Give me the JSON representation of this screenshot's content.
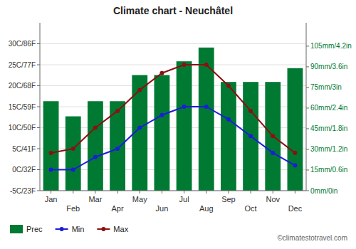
{
  "chart_data": {
    "type": "bar",
    "title": "Climate chart - Neuchâtel",
    "categories": [
      "Jan",
      "Feb",
      "Mar",
      "Apr",
      "May",
      "Jun",
      "Jul",
      "Aug",
      "Sep",
      "Oct",
      "Nov",
      "Dec"
    ],
    "series": [
      {
        "name": "Prec",
        "type": "bar",
        "axis": "y2",
        "color": "#007A33",
        "values": [
          65,
          54,
          65,
          65,
          84,
          84,
          94,
          104,
          79,
          79,
          79,
          89
        ]
      },
      {
        "name": "Min",
        "type": "line",
        "color": "#1C1CDB",
        "marker": "circle",
        "values": [
          0,
          0,
          3,
          5,
          10,
          13,
          15,
          15,
          12,
          8,
          4,
          1
        ]
      },
      {
        "name": "Max",
        "type": "line",
        "color": "#8B1010",
        "marker": "circle",
        "values": [
          4,
          5,
          10,
          14,
          19,
          23,
          25,
          25,
          20,
          14,
          8,
          4
        ]
      }
    ],
    "ylim": [
      -5,
      35
    ],
    "yticks": [
      {
        "value": -5,
        "label": "-5C/23F"
      },
      {
        "value": 0,
        "label": "0C/32F"
      },
      {
        "value": 5,
        "label": "5C/41F"
      },
      {
        "value": 10,
        "label": "10C/50F"
      },
      {
        "value": 15,
        "label": "15C/59F"
      },
      {
        "value": 20,
        "label": "20C/68F"
      },
      {
        "value": 25,
        "label": "25C/77F"
      },
      {
        "value": 30,
        "label": "30C/86F"
      }
    ],
    "y2lim": [
      0,
      122.0
    ],
    "y2ticks": [
      {
        "value": 0,
        "label": "0mm/0in"
      },
      {
        "value": 15,
        "label": "15mm/0.6in"
      },
      {
        "value": 30,
        "label": "30mm/1.2in"
      },
      {
        "value": 45,
        "label": "45mm/1.8in"
      },
      {
        "value": 60,
        "label": "60mm/2.4in"
      },
      {
        "value": 75,
        "label": "75mm/3in"
      },
      {
        "value": 90,
        "label": "90mm/3.6in"
      },
      {
        "value": 105,
        "label": "105mm/4.2in"
      }
    ],
    "grid": true,
    "legend": "bottom",
    "annotations": [
      "©climatestotravel.com"
    ]
  }
}
